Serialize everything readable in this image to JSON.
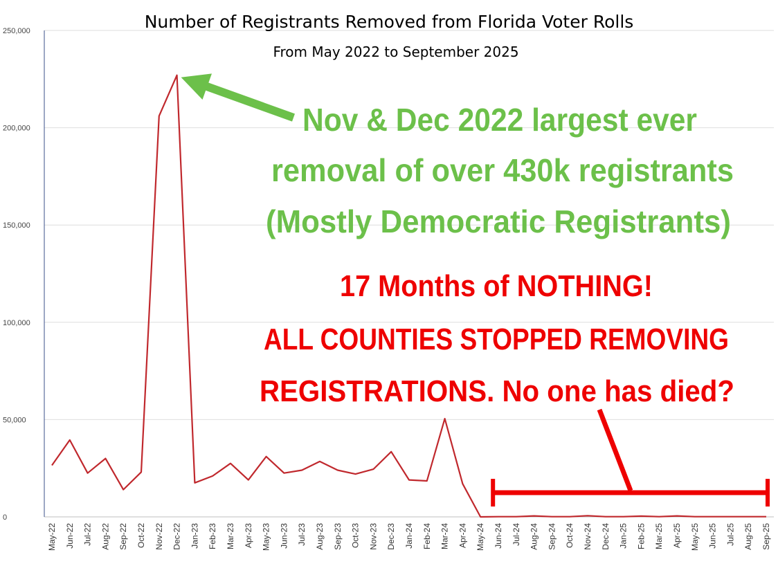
{
  "chart_data": {
    "type": "line",
    "title": "Number of Registrants Removed from Florida Voter Rolls",
    "subtitle": "From May 2022 to September 2025",
    "ylim": [
      0,
      250000
    ],
    "yticks": [
      "0",
      "50,000",
      "100,000",
      "150,000",
      "200,000",
      "250,000"
    ],
    "ytick_values": [
      0,
      50000,
      100000,
      150000,
      200000,
      250000
    ],
    "grid": true,
    "categories": [
      "May-22",
      "Jun-22",
      "Jul-22",
      "Aug-22",
      "Sep-22",
      "Oct-22",
      "Nov-22",
      "Dec-22",
      "Jan-23",
      "Feb-23",
      "Mar-23",
      "Apr-23",
      "May-23",
      "Jun-23",
      "Jul-23",
      "Aug-23",
      "Sep-23",
      "Oct-23",
      "Nov-23",
      "Dec-23",
      "Jan-24",
      "Feb-24",
      "Mar-24",
      "Apr-24",
      "May-24",
      "Jun-24",
      "Jul-24",
      "Aug-24",
      "Sep-24",
      "Oct-24",
      "Nov-24",
      "Dec-24",
      "Jan-25",
      "Feb-25",
      "Mar-25",
      "Apr-25",
      "May-25",
      "Jun-25",
      "Jul-25",
      "Aug-25",
      "Sep-25"
    ],
    "series": [
      {
        "color": "#c0282d",
        "values": [
          26500,
          39500,
          22500,
          30000,
          14000,
          23000,
          206000,
          227000,
          17500,
          21000,
          27500,
          19000,
          31000,
          22500,
          24000,
          28500,
          24000,
          22000,
          24500,
          33500,
          19000,
          18500,
          50500,
          17000,
          0,
          100,
          100,
          500,
          100,
          100,
          600,
          100,
          100,
          400,
          100,
          500,
          100,
          100,
          100,
          100,
          100
        ]
      }
    ],
    "annotations": {
      "green_lines": [
        "Nov & Dec 2022 largest ever",
        "removal of over 430k registrants",
        "(Mostly Democratic Registrants)"
      ],
      "red_lines": [
        "17 Months of NOTHING!",
        "ALL COUNTIES STOPPED REMOVING",
        "REGISTRATIONS.  No one has died?"
      ],
      "green_color": "#6cc04a",
      "red_color": "#ee0000",
      "green_arrow_target": "Dec-22",
      "red_span": [
        "May-24",
        "Sep-25"
      ]
    }
  }
}
